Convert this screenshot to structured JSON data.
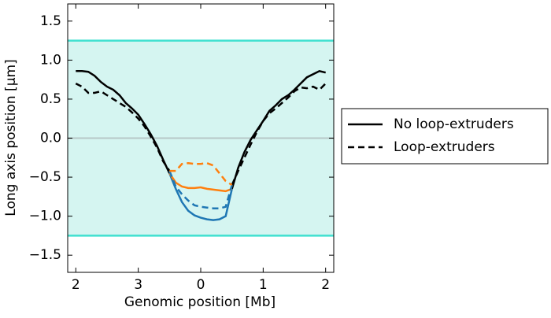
{
  "chart_data": {
    "type": "line",
    "x_label": "Genomic position [Mb]",
    "y_label": "Long axis position [μm]",
    "x": [
      -2.0,
      -1.9,
      -1.8,
      -1.7,
      -1.6,
      -1.5,
      -1.4,
      -1.3,
      -1.2,
      -1.1,
      -1.0,
      -0.9,
      -0.8,
      -0.7,
      -0.6,
      -0.5,
      -0.4,
      -0.3,
      -0.2,
      -0.1,
      0.0,
      0.1,
      0.2,
      0.3,
      0.4,
      0.5,
      0.6,
      0.7,
      0.8,
      0.9,
      1.0,
      1.1,
      1.2,
      1.3,
      1.4,
      1.5,
      1.6,
      1.7,
      1.8,
      1.9,
      2.0
    ],
    "series": [
      {
        "name": "No loop-extruders",
        "color": "#000000",
        "dash": false,
        "values": [
          0.86,
          0.86,
          0.85,
          0.8,
          0.72,
          0.66,
          0.62,
          0.55,
          0.45,
          0.38,
          0.3,
          0.18,
          0.05,
          -0.1,
          -0.28,
          -0.45,
          null,
          null,
          null,
          null,
          null,
          null,
          null,
          null,
          null,
          -0.65,
          -0.38,
          -0.18,
          -0.02,
          0.1,
          0.22,
          0.35,
          0.42,
          0.5,
          0.55,
          0.62,
          0.7,
          0.78,
          0.82,
          0.86,
          0.84
        ]
      },
      {
        "name": "Loop-extruders",
        "color": "#000000",
        "dash": true,
        "values": [
          0.7,
          0.66,
          0.58,
          0.58,
          0.6,
          0.55,
          0.5,
          0.45,
          0.4,
          0.33,
          0.25,
          0.15,
          0.02,
          -0.12,
          -0.3,
          -0.42,
          null,
          null,
          null,
          null,
          null,
          null,
          null,
          null,
          null,
          -0.6,
          -0.42,
          -0.25,
          -0.08,
          0.08,
          0.22,
          0.32,
          0.38,
          0.45,
          0.52,
          0.6,
          0.65,
          0.64,
          0.66,
          0.62,
          0.7
        ]
      },
      {
        "color": "#1f77b4",
        "dash": false,
        "values": [
          null,
          null,
          null,
          null,
          null,
          null,
          null,
          null,
          null,
          null,
          null,
          null,
          null,
          null,
          null,
          -0.45,
          -0.65,
          -0.82,
          -0.93,
          -0.99,
          -1.02,
          -1.04,
          -1.05,
          -1.04,
          -1.0,
          -0.65,
          null,
          null,
          null,
          null,
          null,
          null,
          null,
          null,
          null,
          null,
          null,
          null,
          null,
          null,
          null
        ]
      },
      {
        "color": "#ff7f0e",
        "dash": false,
        "values": [
          null,
          null,
          null,
          null,
          null,
          null,
          null,
          null,
          null,
          null,
          null,
          null,
          null,
          null,
          null,
          -0.45,
          -0.57,
          -0.62,
          -0.64,
          -0.64,
          -0.63,
          -0.65,
          -0.66,
          -0.67,
          -0.68,
          -0.65,
          null,
          null,
          null,
          null,
          null,
          null,
          null,
          null,
          null,
          null,
          null,
          null,
          null,
          null,
          null
        ]
      },
      {
        "color": "#1f77b4",
        "dash": true,
        "values": [
          null,
          null,
          null,
          null,
          null,
          null,
          null,
          null,
          null,
          null,
          null,
          null,
          null,
          null,
          null,
          -0.42,
          -0.62,
          -0.72,
          -0.8,
          -0.86,
          -0.88,
          -0.89,
          -0.9,
          -0.9,
          -0.88,
          -0.6,
          null,
          null,
          null,
          null,
          null,
          null,
          null,
          null,
          null,
          null,
          null,
          null,
          null,
          null,
          null
        ]
      },
      {
        "color": "#ff7f0e",
        "dash": true,
        "values": [
          null,
          null,
          null,
          null,
          null,
          null,
          null,
          null,
          null,
          null,
          null,
          null,
          null,
          null,
          null,
          -0.42,
          -0.42,
          -0.33,
          -0.32,
          -0.33,
          -0.33,
          -0.32,
          -0.35,
          -0.45,
          -0.55,
          -0.6,
          null,
          null,
          null,
          null,
          null,
          null,
          null,
          null,
          null,
          null,
          null,
          null,
          null,
          null,
          null
        ]
      }
    ],
    "xlim": [
      -2.13,
      2.13
    ],
    "xticks": [
      {
        "value": -2,
        "label": "2"
      },
      {
        "value": -1,
        "label": "3"
      },
      0,
      1,
      2
    ],
    "ylim": [
      -1.72,
      1.72
    ],
    "yticks": [
      {
        "value": -1.5,
        "label": "−1.5"
      },
      {
        "value": -1.0,
        "label": "−1.0"
      },
      {
        "value": -0.5,
        "label": "−0.5"
      },
      {
        "value": 0,
        "label": "0.0"
      },
      0.5,
      {
        "value": 1.0,
        "label": "1.0"
      },
      1.5
    ],
    "shaded_band": [
      -1.25,
      1.25
    ],
    "band_color": "#d5f5f1",
    "band_line_color": "#40e0d0",
    "zero_line_color": "#b8c8c8",
    "legend": "outside right"
  }
}
